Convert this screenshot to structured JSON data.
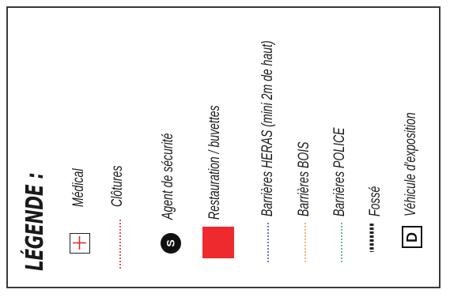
{
  "legend": {
    "title": "LÉGENDE :",
    "items": [
      {
        "label": "Médical",
        "icon": "medical-cross-icon",
        "color": "#e8262a"
      },
      {
        "label": "Clôtures",
        "icon": "fence-dotted-line-icon",
        "color": "#d9323a"
      },
      {
        "label": "Agent de sécurité",
        "icon": "security-agent-circle-icon",
        "glyph": "S",
        "color": "#111111"
      },
      {
        "label": "Restauration / buvettes",
        "icon": "food-square-icon",
        "color": "#ee2a2e"
      },
      {
        "label": "Barrières HERAS (mini 2m de haut)",
        "icon": "heras-dotted-line-icon",
        "color": "#3b5fb0"
      },
      {
        "label": "Barrières BOIS",
        "icon": "wood-dotted-line-icon",
        "color": "#f0a04b"
      },
      {
        "label": "Barrières POLICE",
        "icon": "police-dotted-line-icon",
        "color": "#3fa97a"
      },
      {
        "label": "Fossé",
        "icon": "ditch-dashed-line-icon",
        "color": "#222222"
      },
      {
        "label": "Véhicule d'exposition",
        "icon": "vehicle-box-icon",
        "glyph": "D",
        "color": "#111111"
      }
    ]
  }
}
